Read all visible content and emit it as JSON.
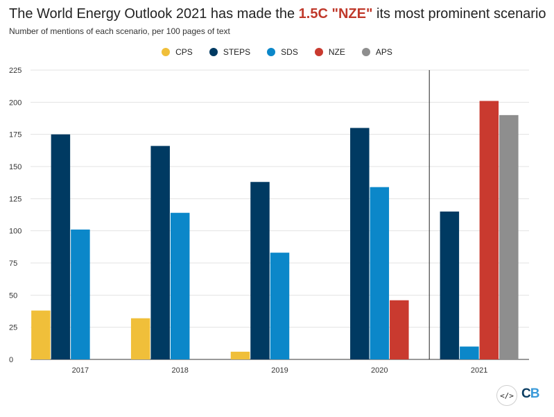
{
  "title": {
    "before": "The World Energy Outlook 2021 has made the ",
    "highlight": "1.5C \"NZE\"",
    "after": " its most prominent scenario"
  },
  "subtitle": "Number of mentions of each scenario, per 100 pages of text",
  "legend": [
    {
      "name": "CPS",
      "color": "#f0bf3a"
    },
    {
      "name": "STEPS",
      "color": "#003a62"
    },
    {
      "name": "SDS",
      "color": "#0b87c9"
    },
    {
      "name": "NZE",
      "color": "#c93a2f"
    },
    {
      "name": "APS",
      "color": "#8e8e8e"
    }
  ],
  "embed_icon": "</>",
  "logo": {
    "c": "C",
    "b": "B"
  },
  "chart_data": {
    "type": "bar",
    "title": "The World Energy Outlook 2021 has made the 1.5C \"NZE\" its most prominent scenario",
    "xlabel": "",
    "ylabel": "",
    "ylim": [
      0,
      225
    ],
    "yticks": [
      0,
      25,
      50,
      75,
      100,
      125,
      150,
      175,
      200,
      225
    ],
    "grid": true,
    "legend_position": "top-center",
    "categories": [
      "2017",
      "2018",
      "2019",
      "2020",
      "2021"
    ],
    "series": [
      {
        "name": "CPS",
        "color": "#f0bf3a",
        "values": [
          38,
          32,
          6,
          null,
          null
        ]
      },
      {
        "name": "STEPS",
        "color": "#003a62",
        "values": [
          175,
          166,
          138,
          180,
          115
        ]
      },
      {
        "name": "SDS",
        "color": "#0b87c9",
        "values": [
          101,
          114,
          83,
          134,
          10
        ]
      },
      {
        "name": "NZE",
        "color": "#c93a2f",
        "values": [
          null,
          null,
          null,
          46,
          201
        ]
      },
      {
        "name": "APS",
        "color": "#8e8e8e",
        "values": [
          null,
          null,
          null,
          null,
          190
        ]
      }
    ],
    "annotations": [
      {
        "type": "vertical-line",
        "between": [
          "2020",
          "2021"
        ]
      }
    ]
  }
}
